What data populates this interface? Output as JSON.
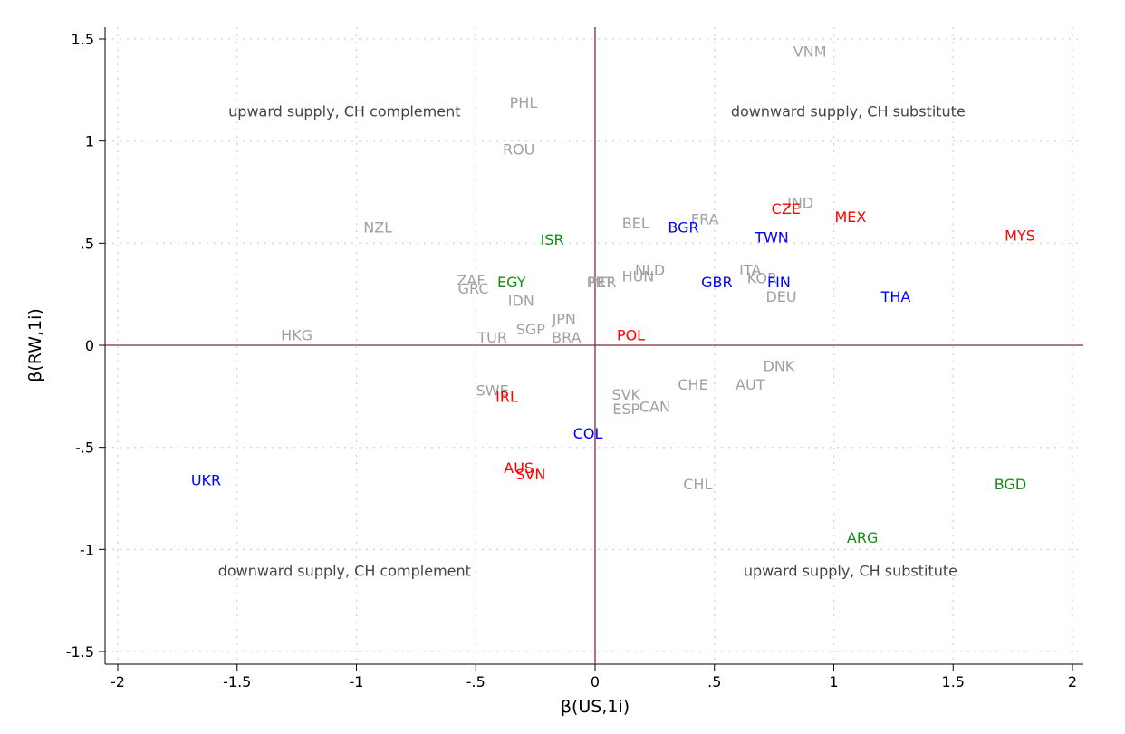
{
  "chart_data": {
    "type": "scatter",
    "xlabel": "β(US,1i)",
    "ylabel": "β(RW,1i)",
    "xlim": [
      -2.05,
      2.05
    ],
    "ylim": [
      -1.55,
      1.55
    ],
    "grid": true,
    "reference_lines": {
      "x": 0,
      "y": 0,
      "color": "#8b2a3a"
    },
    "x_ticks": [
      {
        "value": -2,
        "label": "-2"
      },
      {
        "value": -1.5,
        "label": "-1.5"
      },
      {
        "value": -1,
        "label": "-1"
      },
      {
        "value": -0.5,
        "label": "-.5"
      },
      {
        "value": 0,
        "label": "0"
      },
      {
        "value": 0.5,
        "label": ".5"
      },
      {
        "value": 1,
        "label": "1"
      },
      {
        "value": 1.5,
        "label": "1.5"
      },
      {
        "value": 2,
        "label": "2"
      }
    ],
    "y_ticks": [
      {
        "value": -1.5,
        "label": "-1.5"
      },
      {
        "value": -1,
        "label": "-1"
      },
      {
        "value": -0.5,
        "label": "-.5"
      },
      {
        "value": 0,
        "label": "0"
      },
      {
        "value": 0.5,
        "label": ".5"
      },
      {
        "value": 1,
        "label": "1"
      },
      {
        "value": 1.5,
        "label": "1.5"
      }
    ],
    "colors": {
      "gray": "#a0a0a0",
      "red": "#ff0000",
      "blue": "#0000ff",
      "green": "#168a16"
    },
    "region_labels": [
      {
        "text": "upward supply, CH complement",
        "x": -1.05,
        "y": 1.12
      },
      {
        "text": "downward supply, CH substitute",
        "x": 1.06,
        "y": 1.12
      },
      {
        "text": "downward supply, CH complement",
        "x": -1.05,
        "y": -1.13
      },
      {
        "text": "upward supply, CH substitute",
        "x": 1.07,
        "y": -1.13
      }
    ],
    "points": [
      {
        "label": "VNM",
        "x": 0.9,
        "y": 1.44,
        "color": "gray"
      },
      {
        "label": "PHL",
        "x": -0.3,
        "y": 1.19,
        "color": "gray"
      },
      {
        "label": "ROU",
        "x": -0.32,
        "y": 0.96,
        "color": "gray"
      },
      {
        "label": "NZL",
        "x": -0.91,
        "y": 0.58,
        "color": "gray"
      },
      {
        "label": "ISR",
        "x": -0.18,
        "y": 0.52,
        "color": "green"
      },
      {
        "label": "IND",
        "x": 0.86,
        "y": 0.7,
        "color": "gray"
      },
      {
        "label": "CZE",
        "x": 0.8,
        "y": 0.67,
        "color": "red"
      },
      {
        "label": "MEX",
        "x": 1.07,
        "y": 0.63,
        "color": "red"
      },
      {
        "label": "FRA",
        "x": 0.46,
        "y": 0.62,
        "color": "gray"
      },
      {
        "label": "BEL",
        "x": 0.17,
        "y": 0.6,
        "color": "gray"
      },
      {
        "label": "BGR",
        "x": 0.37,
        "y": 0.58,
        "color": "blue"
      },
      {
        "label": "TWN",
        "x": 0.74,
        "y": 0.53,
        "color": "blue"
      },
      {
        "label": "MYS",
        "x": 1.78,
        "y": 0.54,
        "color": "red"
      },
      {
        "label": "NLD",
        "x": 0.23,
        "y": 0.37,
        "color": "gray"
      },
      {
        "label": "ITA",
        "x": 0.65,
        "y": 0.37,
        "color": "gray"
      },
      {
        "label": "HUN",
        "x": 0.18,
        "y": 0.34,
        "color": "gray"
      },
      {
        "label": "KOR",
        "x": 0.7,
        "y": 0.33,
        "color": "gray"
      },
      {
        "label": "ZAF",
        "x": -0.52,
        "y": 0.32,
        "color": "gray"
      },
      {
        "label": "EGY",
        "x": -0.35,
        "y": 0.31,
        "color": "green"
      },
      {
        "label": "PRT",
        "x": 0.02,
        "y": 0.31,
        "color": "gray"
      },
      {
        "label": "PER",
        "x": 0.03,
        "y": 0.31,
        "color": "gray"
      },
      {
        "label": "GBR",
        "x": 0.51,
        "y": 0.31,
        "color": "blue"
      },
      {
        "label": "FIN",
        "x": 0.77,
        "y": 0.31,
        "color": "blue"
      },
      {
        "label": "GRC",
        "x": -0.51,
        "y": 0.28,
        "color": "gray"
      },
      {
        "label": "DEU",
        "x": 0.78,
        "y": 0.24,
        "color": "gray"
      },
      {
        "label": "THA",
        "x": 1.26,
        "y": 0.24,
        "color": "blue"
      },
      {
        "label": "IDN",
        "x": -0.31,
        "y": 0.22,
        "color": "gray"
      },
      {
        "label": "JPN",
        "x": -0.13,
        "y": 0.13,
        "color": "gray"
      },
      {
        "label": "SGP",
        "x": -0.27,
        "y": 0.08,
        "color": "gray"
      },
      {
        "label": "HKG",
        "x": -1.25,
        "y": 0.05,
        "color": "gray"
      },
      {
        "label": "TUR",
        "x": -0.43,
        "y": 0.04,
        "color": "gray"
      },
      {
        "label": "BRA",
        "x": -0.12,
        "y": 0.04,
        "color": "gray"
      },
      {
        "label": "POL",
        "x": 0.15,
        "y": 0.05,
        "color": "red"
      },
      {
        "label": "DNK",
        "x": 0.77,
        "y": -0.1,
        "color": "gray"
      },
      {
        "label": "CHE",
        "x": 0.41,
        "y": -0.19,
        "color": "gray"
      },
      {
        "label": "AUT",
        "x": 0.65,
        "y": -0.19,
        "color": "gray"
      },
      {
        "label": "SWE",
        "x": -0.43,
        "y": -0.22,
        "color": "gray"
      },
      {
        "label": "IRL",
        "x": -0.37,
        "y": -0.25,
        "color": "red"
      },
      {
        "label": "SVK",
        "x": 0.13,
        "y": -0.24,
        "color": "gray"
      },
      {
        "label": "ESP",
        "x": 0.13,
        "y": -0.31,
        "color": "gray"
      },
      {
        "label": "CAN",
        "x": 0.25,
        "y": -0.3,
        "color": "gray"
      },
      {
        "label": "COL",
        "x": -0.03,
        "y": -0.43,
        "color": "blue"
      },
      {
        "label": "AUS",
        "x": -0.32,
        "y": -0.6,
        "color": "red"
      },
      {
        "label": "SVN",
        "x": -0.27,
        "y": -0.63,
        "color": "red"
      },
      {
        "label": "UKR",
        "x": -1.63,
        "y": -0.66,
        "color": "blue"
      },
      {
        "label": "CHL",
        "x": 0.43,
        "y": -0.68,
        "color": "gray"
      },
      {
        "label": "BGD",
        "x": 1.74,
        "y": -0.68,
        "color": "green"
      },
      {
        "label": "ARG",
        "x": 1.12,
        "y": -0.94,
        "color": "green"
      }
    ]
  }
}
